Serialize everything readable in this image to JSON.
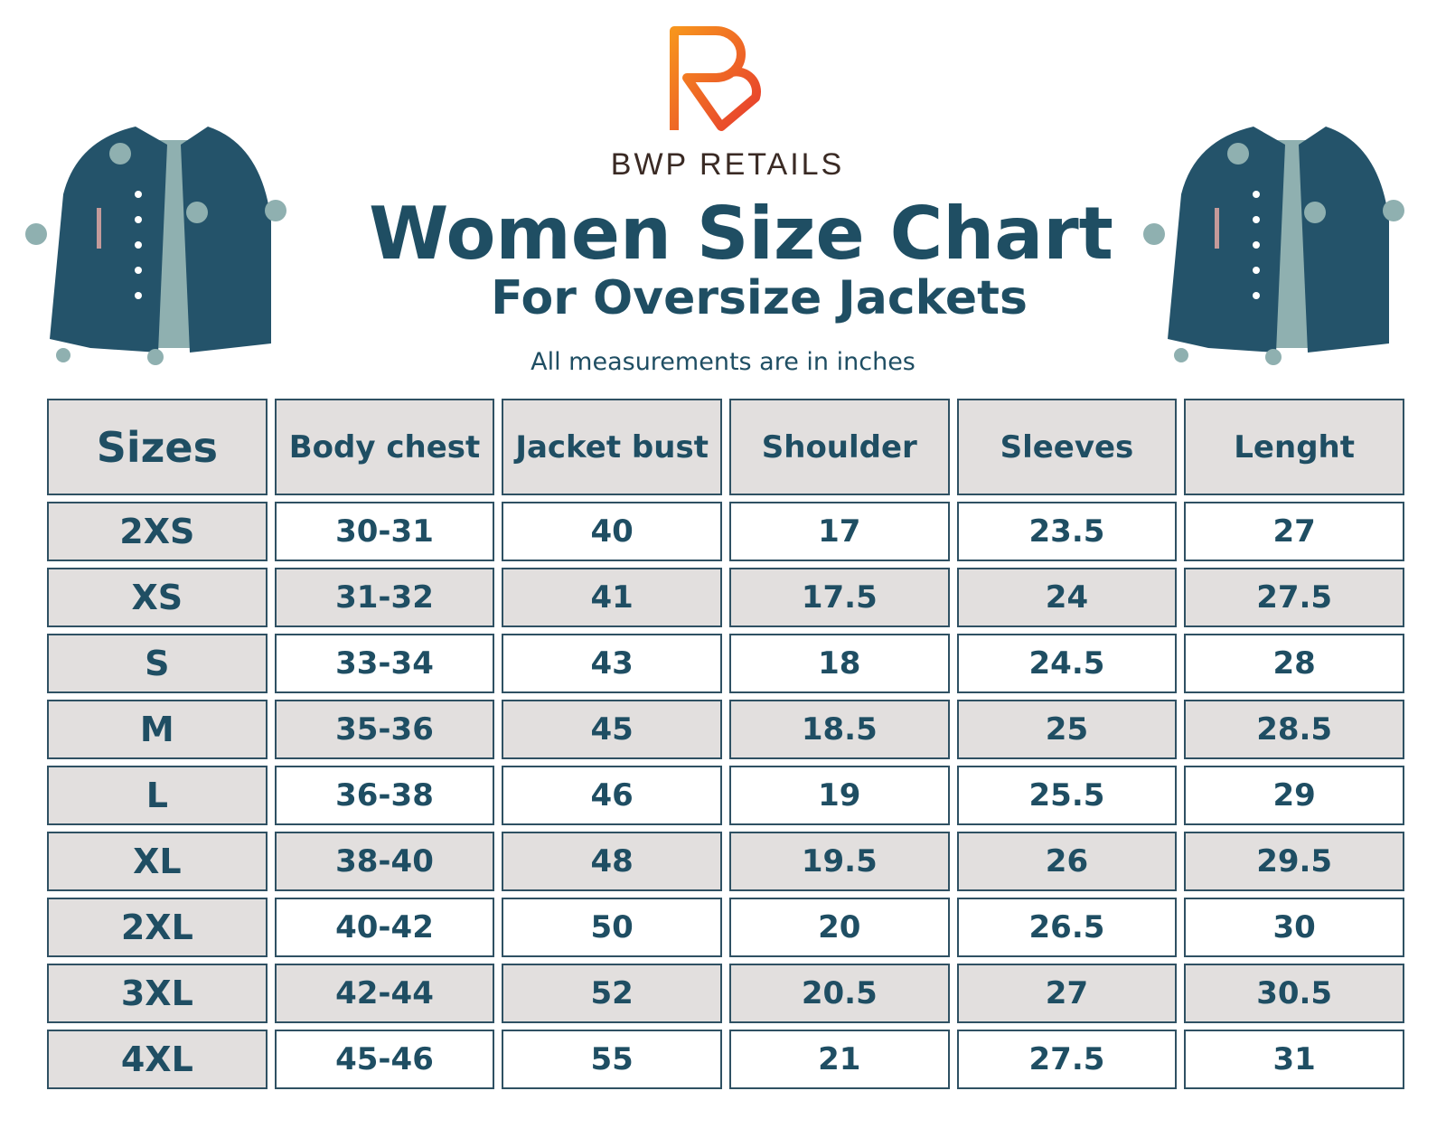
{
  "brand": "BWP RETAILS",
  "title": "Women Size Chart",
  "subtitle": "For Oversize Jackets",
  "note": "All measurements are in inches",
  "table": {
    "header": [
      "Sizes",
      "Body chest",
      "Jacket bust",
      "Shoulder",
      "Sleeves",
      "Lenght"
    ],
    "rows": [
      [
        "2XS",
        "30-31",
        "40",
        "17",
        "23.5",
        "27"
      ],
      [
        "XS",
        "31-32",
        "41",
        "17.5",
        "24",
        "27.5"
      ],
      [
        "S",
        "33-34",
        "43",
        "18",
        "24.5",
        "28"
      ],
      [
        "M",
        "35-36",
        "45",
        "18.5",
        "25",
        "28.5"
      ],
      [
        "L",
        "36-38",
        "46",
        "19",
        "25.5",
        "29"
      ],
      [
        "XL",
        "38-40",
        "48",
        "19.5",
        "26",
        "29.5"
      ],
      [
        "2XL",
        "40-42",
        "50",
        "20",
        "26.5",
        "30"
      ],
      [
        "3XL",
        "42-44",
        "52",
        "20.5",
        "27",
        "30.5"
      ],
      [
        "4XL",
        "45-46",
        "55",
        "21",
        "27.5",
        "31"
      ]
    ]
  }
}
